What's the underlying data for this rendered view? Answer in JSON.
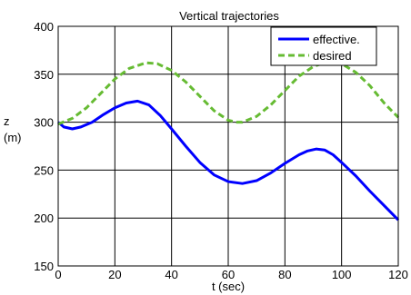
{
  "chart_data": {
    "type": "line",
    "title": "Vertical trajectories",
    "xlabel": "t (sec)",
    "ylabel": "z\n(m)",
    "xlim": [
      0,
      120
    ],
    "ylim": [
      150,
      400
    ],
    "xticks": [
      0,
      20,
      40,
      60,
      80,
      100,
      120
    ],
    "yticks": [
      150,
      200,
      250,
      300,
      350,
      400
    ],
    "grid": true,
    "legend_position": "top-right",
    "series": [
      {
        "name": "effective.",
        "color": "#0000ff",
        "dash": "solid",
        "x": [
          0,
          2,
          5,
          8,
          12,
          16,
          20,
          24,
          28,
          32,
          36,
          40,
          45,
          50,
          55,
          60,
          65,
          70,
          75,
          80,
          85,
          88,
          91,
          94,
          97,
          100,
          105,
          110,
          115,
          120
        ],
        "y": [
          300,
          295,
          293,
          295,
          300,
          308,
          315,
          320,
          322,
          318,
          307,
          293,
          275,
          258,
          245,
          238,
          236,
          239,
          247,
          257,
          266,
          270,
          272,
          271,
          266,
          258,
          244,
          228,
          213,
          198
        ]
      },
      {
        "name": "desired",
        "color": "#66bb33",
        "dash": "dashed",
        "x": [
          0,
          5,
          10,
          15,
          20,
          25,
          31,
          35,
          40,
          45,
          50,
          55,
          60,
          63,
          65,
          70,
          75,
          80,
          85,
          90,
          95,
          98,
          100,
          105,
          110,
          115,
          120
        ],
        "y": [
          298,
          304,
          315,
          330,
          345,
          356,
          362,
          361,
          354,
          342,
          327,
          312,
          302,
          300,
          300,
          306,
          318,
          333,
          348,
          358,
          363,
          363,
          361,
          352,
          338,
          320,
          305
        ]
      }
    ]
  }
}
